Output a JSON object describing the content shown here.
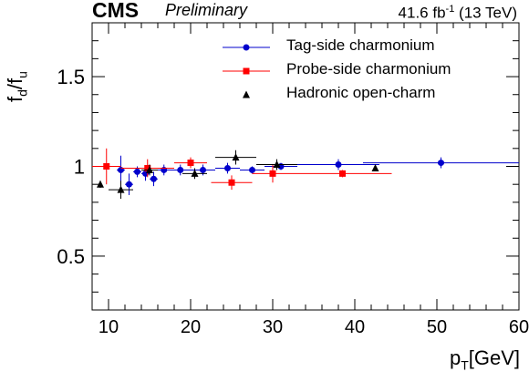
{
  "header": {
    "experiment": "CMS",
    "status": "Preliminary",
    "lumi": "41.6 fb",
    "lumi_exp": "-1",
    "energy": " (13 TeV)"
  },
  "axes": {
    "xlabel": "p",
    "xlabel_sub": "T",
    "xlabel_unit": "[GeV]",
    "ylabel_a": "f",
    "ylabel_a_sub": "d",
    "ylabel_sep": "/f",
    "ylabel_b_sub": "u"
  },
  "chart_data": {
    "type": "scatter",
    "xlim": [
      8,
      60
    ],
    "ylim": [
      0.2,
      1.8
    ],
    "x_ticks": [
      "10",
      "20",
      "30",
      "40",
      "50",
      "60"
    ],
    "y_ticks": [
      "0.5",
      "1",
      "1.5"
    ],
    "legend_position": "top-right",
    "series": [
      {
        "name": "Tag-side charmonium",
        "color": "#0000cc",
        "marker": "circle",
        "points": [
          {
            "x": 11.5,
            "y": 0.98,
            "xerr": 0.5,
            "yerr": 0.08
          },
          {
            "x": 12.5,
            "y": 0.9,
            "xerr": 0.5,
            "yerr": 0.06
          },
          {
            "x": 13.5,
            "y": 0.97,
            "xerr": 0.5,
            "yerr": 0.03
          },
          {
            "x": 14.5,
            "y": 0.96,
            "xerr": 0.5,
            "yerr": 0.04
          },
          {
            "x": 15.5,
            "y": 0.93,
            "xerr": 0.5,
            "yerr": 0.04
          },
          {
            "x": 16.75,
            "y": 0.98,
            "xerr": 0.75,
            "yerr": 0.03
          },
          {
            "x": 18.75,
            "y": 0.98,
            "xerr": 1.25,
            "yerr": 0.03
          },
          {
            "x": 21.5,
            "y": 0.98,
            "xerr": 1.5,
            "yerr": 0.03
          },
          {
            "x": 24.5,
            "y": 0.99,
            "xerr": 1.5,
            "yerr": 0.03
          },
          {
            "x": 27.5,
            "y": 0.98,
            "xerr": 1.5,
            "yerr": 0.02
          },
          {
            "x": 31.0,
            "y": 1.0,
            "xerr": 2.0,
            "yerr": 0.02
          },
          {
            "x": 38.0,
            "y": 1.01,
            "xerr": 5.0,
            "yerr": 0.03
          },
          {
            "x": 50.5,
            "y": 1.02,
            "xerr": 9.5,
            "yerr": 0.03
          }
        ]
      },
      {
        "name": "Probe-side charmonium",
        "color": "#ff0000",
        "marker": "square",
        "points": [
          {
            "x": 9.75,
            "y": 1.0,
            "xerr": 1.75,
            "yerr": 0.1
          },
          {
            "x": 14.75,
            "y": 0.99,
            "xerr": 3.25,
            "yerr": 0.05
          },
          {
            "x": 20.0,
            "y": 1.02,
            "xerr": 2.0,
            "yerr": 0.03
          },
          {
            "x": 25.0,
            "y": 0.91,
            "xerr": 2.5,
            "yerr": 0.04
          },
          {
            "x": 30.0,
            "y": 0.96,
            "xerr": 2.5,
            "yerr": 0.05
          },
          {
            "x": 38.5,
            "y": 0.96,
            "xerr": 6.0,
            "yerr": 0.02
          }
        ]
      },
      {
        "name": "Hadronic open-charm",
        "color": "#000000",
        "marker": "triangle",
        "points": [
          {
            "x": 9.0,
            "y": 0.9,
            "xerr": 0.0,
            "yerr": 0.02
          },
          {
            "x": 11.5,
            "y": 0.87,
            "xerr": 1.5,
            "yerr": 0.05
          },
          {
            "x": 15.0,
            "y": 0.98,
            "xerr": 1.0,
            "yerr": 0.03
          },
          {
            "x": 20.5,
            "y": 0.96,
            "xerr": 1.5,
            "yerr": 0.03
          },
          {
            "x": 25.5,
            "y": 1.05,
            "xerr": 2.5,
            "yerr": 0.04
          },
          {
            "x": 30.5,
            "y": 1.01,
            "xerr": 2.5,
            "yerr": 0.03
          },
          {
            "x": 42.5,
            "y": 0.99,
            "xerr": 0.0,
            "yerr": 0.0
          }
        ]
      }
    ]
  }
}
